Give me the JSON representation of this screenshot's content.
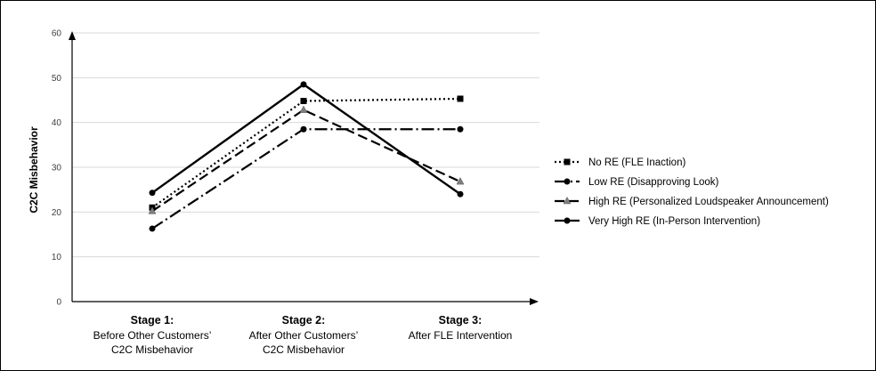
{
  "chart_data": {
    "type": "line",
    "ylabel": "C2C Misbehavior",
    "ylim": [
      0,
      60
    ],
    "yticks": [
      0,
      10,
      20,
      30,
      40,
      50,
      60
    ],
    "grid": true,
    "legend_position": "right",
    "categories": [
      {
        "title": "Stage 1:",
        "lines": [
          "Before Other Customers’",
          "C2C Misbehavior"
        ]
      },
      {
        "title": "Stage 2:",
        "lines": [
          "After Other Customers’",
          "C2C Misbehavior"
        ]
      },
      {
        "title": "Stage 3:",
        "lines": [
          "After FLE Intervention"
        ]
      }
    ],
    "series": [
      {
        "name": "No RE (FLE Inaction)",
        "values": [
          21,
          44.8,
          45.3
        ],
        "dash": "2,3",
        "marker": "square",
        "color": "#000000"
      },
      {
        "name": "Low RE (Disapproving Look)",
        "values": [
          16.3,
          38.5,
          38.5
        ],
        "dash": "14,4,2,4",
        "marker": "circle",
        "color": "#000000"
      },
      {
        "name": "High RE (Personalized Loudspeaker Announcement)",
        "values": [
          20.2,
          42.8,
          26.8
        ],
        "dash": "11,5",
        "marker": "triangle",
        "color": "#000000"
      },
      {
        "name": "Very High RE (In-Person Intervention)",
        "values": [
          24.3,
          48.5,
          24
        ],
        "dash": "",
        "marker": "circle",
        "color": "#000000"
      }
    ]
  }
}
